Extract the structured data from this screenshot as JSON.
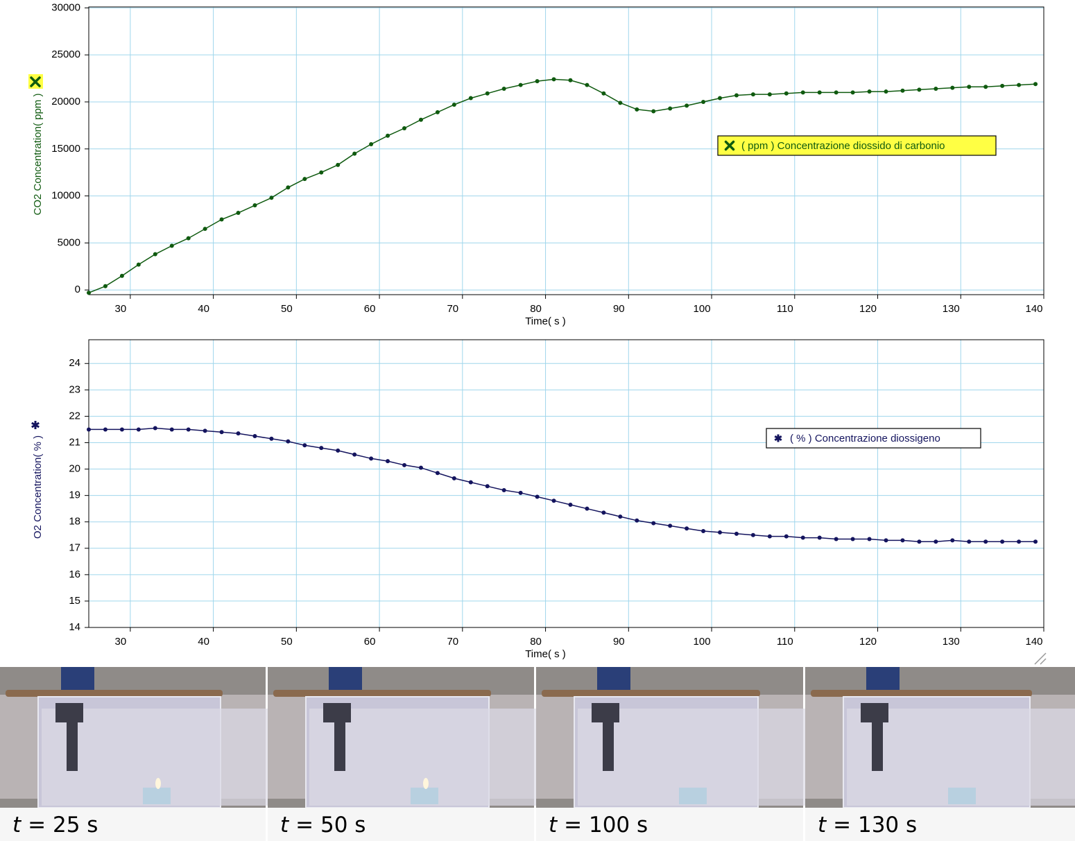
{
  "chart_data": [
    {
      "type": "line",
      "x_label": "Time( s )",
      "y_label": "CO2 Concentration( ppm )",
      "x": [
        25,
        27,
        29,
        31,
        33,
        35,
        37,
        39,
        41,
        43,
        45,
        47,
        49,
        51,
        53,
        55,
        57,
        59,
        61,
        63,
        65,
        67,
        69,
        71,
        73,
        75,
        77,
        79,
        81,
        83,
        85,
        87,
        89,
        91,
        93,
        95,
        97,
        99,
        101,
        103,
        105,
        107,
        109,
        111,
        113,
        115,
        117,
        119,
        121,
        123,
        125,
        127,
        129,
        131,
        133,
        135,
        137,
        139
      ],
      "series": [
        {
          "name": "( ppm ) Concentrazione diossido di carbonio",
          "color": "#0f5a0f",
          "values": [
            -300,
            400,
            1500,
            2700,
            3800,
            4700,
            5500,
            6500,
            7500,
            8200,
            9000,
            9800,
            10900,
            11800,
            12500,
            13300,
            14500,
            15500,
            16400,
            17200,
            18100,
            18900,
            19700,
            20400,
            20900,
            21400,
            21800,
            22200,
            22400,
            22300,
            21800,
            20900,
            19900,
            19200,
            19000,
            19300,
            19600,
            20000,
            20400,
            20700,
            20800,
            20800,
            20900,
            21000,
            21000,
            21000,
            21000,
            21100,
            21100,
            21200,
            21300,
            21400,
            21500,
            21600,
            21600,
            21700,
            21800,
            21900
          ]
        }
      ],
      "xlim": [
        25,
        140
      ],
      "xticks": [
        30,
        40,
        50,
        60,
        70,
        80,
        90,
        100,
        110,
        120,
        130,
        140
      ],
      "ylim": [
        -500,
        30100
      ],
      "yticks": [
        0,
        5000,
        10000,
        15000,
        20000,
        25000,
        30000
      ],
      "grid": true,
      "legend_fill": "#ffff44"
    },
    {
      "type": "line",
      "x_label": "Time( s )",
      "y_label": "O2 Concentration( % )",
      "x": [
        25,
        27,
        29,
        31,
        33,
        35,
        37,
        39,
        41,
        43,
        45,
        47,
        49,
        51,
        53,
        55,
        57,
        59,
        61,
        63,
        65,
        67,
        69,
        71,
        73,
        75,
        77,
        79,
        81,
        83,
        85,
        87,
        89,
        91,
        93,
        95,
        97,
        99,
        101,
        103,
        105,
        107,
        109,
        111,
        113,
        115,
        117,
        119,
        121,
        123,
        125,
        127,
        129,
        131,
        133,
        135,
        137,
        139
      ],
      "series": [
        {
          "name": "( % ) Concentrazione diossigeno",
          "color": "#14145e",
          "values": [
            21.5,
            21.5,
            21.5,
            21.5,
            21.55,
            21.5,
            21.5,
            21.45,
            21.4,
            21.35,
            21.25,
            21.15,
            21.05,
            20.9,
            20.8,
            20.7,
            20.55,
            20.4,
            20.3,
            20.15,
            20.05,
            19.85,
            19.65,
            19.5,
            19.35,
            19.2,
            19.1,
            18.95,
            18.8,
            18.65,
            18.5,
            18.35,
            18.2,
            18.05,
            17.95,
            17.85,
            17.75,
            17.65,
            17.6,
            17.55,
            17.5,
            17.45,
            17.45,
            17.4,
            17.4,
            17.35,
            17.35,
            17.35,
            17.3,
            17.3,
            17.25,
            17.25,
            17.3,
            17.25,
            17.25,
            17.25,
            17.25,
            17.25
          ]
        }
      ],
      "xlim": [
        25,
        140
      ],
      "xticks": [
        30,
        40,
        50,
        60,
        70,
        80,
        90,
        100,
        110,
        120,
        130,
        140
      ],
      "ylim": [
        14,
        24.9
      ],
      "yticks": [
        14,
        15,
        16,
        17,
        18,
        19,
        20,
        21,
        22,
        23,
        24
      ],
      "grid": true,
      "legend_fill": "#ffffff"
    }
  ],
  "photos": [
    {
      "variable": "t",
      "caption": "= 25 s",
      "flame": true
    },
    {
      "variable": "t",
      "caption": "=  50 s",
      "flame": true
    },
    {
      "variable": "t",
      "caption": "= 100 s",
      "flame": false
    },
    {
      "variable": "t",
      "caption": "= 130 s",
      "flame": false
    }
  ]
}
